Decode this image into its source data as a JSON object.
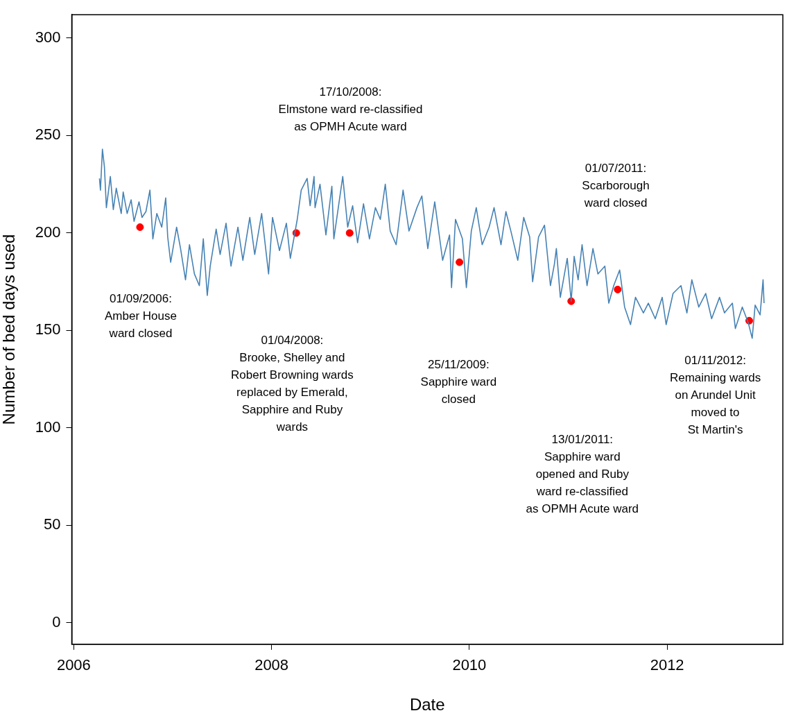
{
  "chart_data": {
    "type": "line",
    "xlabel": "Date",
    "ylabel": "Number of bed days used",
    "xlim": [
      2005.98,
      2013.17
    ],
    "ylim": [
      -11,
      312
    ],
    "xticks": [
      2006,
      2008,
      2010,
      2012
    ],
    "yticks": [
      0,
      50,
      100,
      150,
      200,
      250,
      300
    ],
    "grid": false,
    "series": [
      {
        "color": "#4682b4",
        "x": [
          2006.26,
          2006.27,
          2006.29,
          2006.31,
          2006.33,
          2006.37,
          2006.4,
          2006.43,
          2006.48,
          2006.5,
          2006.54,
          2006.58,
          2006.61,
          2006.66,
          2006.69,
          2006.73,
          2006.77,
          2006.8,
          2006.84,
          2006.89,
          2006.93,
          2006.95,
          2006.98,
          2007.04,
          2007.08,
          2007.13,
          2007.17,
          2007.22,
          2007.27,
          2007.31,
          2007.35,
          2007.38,
          2007.44,
          2007.48,
          2007.54,
          2007.59,
          2007.66,
          2007.71,
          2007.78,
          2007.83,
          2007.9,
          2007.97,
          2008.01,
          2008.08,
          2008.15,
          2008.19,
          2008.26,
          2008.3,
          2008.36,
          2008.39,
          2008.43,
          2008.44,
          2008.49,
          2008.55,
          2008.61,
          2008.63,
          2008.72,
          2008.77,
          2008.82,
          2008.87,
          2008.93,
          2008.99,
          2009.05,
          2009.1,
          2009.15,
          2009.2,
          2009.26,
          2009.33,
          2009.39,
          2009.47,
          2009.52,
          2009.58,
          2009.65,
          2009.73,
          2009.8,
          2009.82,
          2009.86,
          2009.93,
          2009.97,
          2010.02,
          2010.07,
          2010.13,
          2010.2,
          2010.25,
          2010.32,
          2010.37,
          2010.42,
          2010.49,
          2010.55,
          2010.61,
          2010.64,
          2010.7,
          2010.76,
          2010.82,
          2010.86,
          2010.88,
          2010.92,
          2010.99,
          2011.03,
          2011.06,
          2011.1,
          2011.14,
          2011.19,
          2011.25,
          2011.3,
          2011.37,
          2011.41,
          2011.46,
          2011.52,
          2011.57,
          2011.63,
          2011.68,
          2011.76,
          2011.81,
          2011.88,
          2011.95,
          2011.99,
          2012.06,
          2012.14,
          2012.2,
          2012.25,
          2012.32,
          2012.39,
          2012.45,
          2012.53,
          2012.58,
          2012.66,
          2012.69,
          2012.76,
          2012.82,
          2012.86,
          2012.89,
          2012.94,
          2012.97,
          2012.98
        ],
        "values": [
          228,
          222,
          243,
          234,
          213,
          229,
          212,
          223,
          210,
          221,
          210,
          217,
          206,
          216,
          208,
          211,
          222,
          197,
          210,
          203,
          218,
          198,
          185,
          203,
          192,
          176,
          194,
          179,
          173,
          197,
          168,
          183,
          202,
          189,
          205,
          183,
          203,
          186,
          208,
          189,
          210,
          179,
          208,
          191,
          205,
          187,
          207,
          222,
          228,
          214,
          229,
          213,
          225,
          199,
          224,
          197,
          229,
          203,
          214,
          195,
          215,
          197,
          213,
          207,
          225,
          201,
          194,
          222,
          201,
          213,
          219,
          192,
          216,
          186,
          199,
          172,
          207,
          197,
          172,
          201,
          213,
          194,
          203,
          213,
          194,
          211,
          201,
          186,
          208,
          198,
          175,
          198,
          204,
          173,
          184,
          192,
          167,
          187,
          165,
          188,
          176,
          194,
          173,
          192,
          179,
          183,
          164,
          173,
          181,
          162,
          153,
          167,
          159,
          164,
          156,
          167,
          153,
          169,
          173,
          159,
          176,
          162,
          169,
          156,
          167,
          159,
          164,
          151,
          162,
          154,
          146,
          163,
          158,
          176,
          164
        ]
      },
      {
        "type": "scatter",
        "color": "#ff0000",
        "x": [
          2006.67,
          2008.25,
          2008.79,
          2009.9,
          2011.03,
          2011.5,
          2012.83
        ],
        "values": [
          203,
          200,
          200,
          185,
          165,
          171,
          155
        ]
      }
    ],
    "annotations": [
      "01/09/2006:\nAmber House\nward closed",
      "01/04/2008:\nBrooke, Shelley and\nRobert Browning wards\nreplaced by Emerald,\nSapphire and Ruby\nwards",
      "17/10/2008:\nElmstone ward re-classified\nas OPMH Acute ward",
      "25/11/2009:\nSapphire ward\nclosed",
      "13/01/2011:\nSapphire ward\nopened and Ruby\nward re-classified\nas OPMH Acute ward",
      "01/07/2011:\nScarborough\nward closed",
      "01/11/2012:\nRemaining wards\non Arundel Unit\nmoved to\nSt Martin's"
    ]
  }
}
